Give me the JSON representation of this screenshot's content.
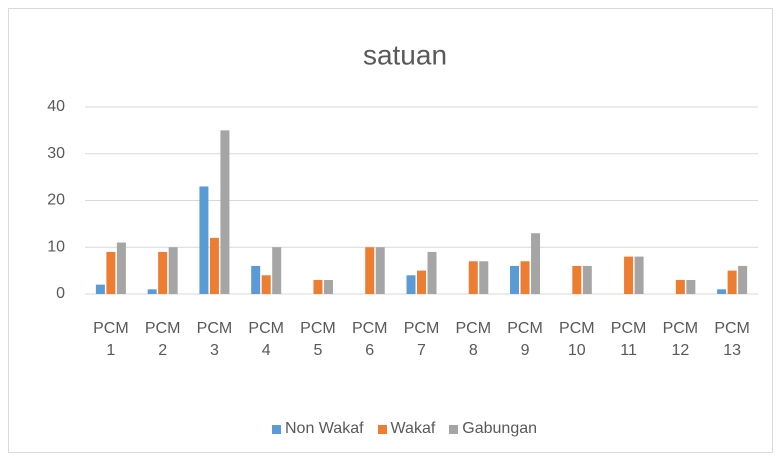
{
  "chart_data": {
    "type": "bar",
    "title": "satuan",
    "categories": [
      "PCM 1",
      "PCM 2",
      "PCM 3",
      "PCM 4",
      "PCM 5",
      "PCM 6",
      "PCM 7",
      "PCM 8",
      "PCM 9",
      "PCM 10",
      "PCM 11",
      "PCM 12",
      "PCM 13"
    ],
    "series": [
      {
        "name": "Non Wakaf",
        "color": "#5b9bd5",
        "values": [
          2,
          1,
          23,
          6,
          0,
          0,
          4,
          0,
          6,
          0,
          0,
          0,
          1
        ]
      },
      {
        "name": "Wakaf",
        "color": "#ed7d31",
        "values": [
          9,
          9,
          12,
          4,
          3,
          10,
          5,
          7,
          7,
          6,
          8,
          3,
          5
        ]
      },
      {
        "name": "Gabungan",
        "color": "#a5a5a5",
        "values": [
          11,
          10,
          35,
          10,
          3,
          10,
          9,
          7,
          13,
          6,
          8,
          3,
          6
        ]
      }
    ],
    "ylim": [
      0,
      40
    ],
    "yticks": [
      0,
      10,
      20,
      30,
      40
    ],
    "grid": true,
    "legend": "bottom"
  }
}
